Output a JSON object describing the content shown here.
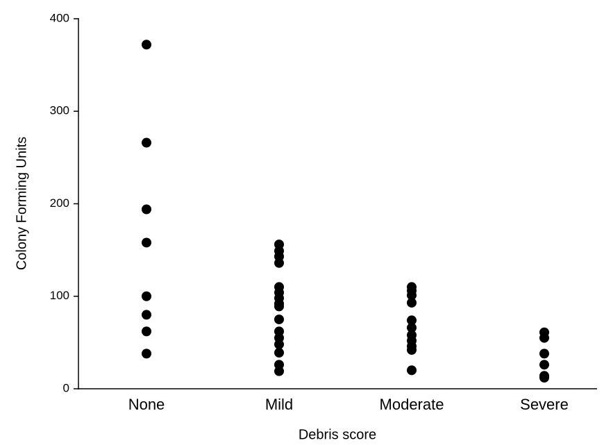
{
  "chart_data": {
    "type": "strip",
    "x_label": "Debris score",
    "y_label": "Colony Forming Units",
    "categories": [
      "None",
      "Mild",
      "Moderate",
      "Severe"
    ],
    "values": [
      [
        372,
        266,
        194,
        158,
        100,
        80,
        62,
        38
      ],
      [
        156,
        149,
        143,
        136,
        110,
        104,
        98,
        92,
        89,
        75,
        62,
        55,
        48,
        39,
        26,
        19
      ],
      [
        110,
        106,
        101,
        93,
        74,
        66,
        58,
        52,
        46,
        42,
        20
      ],
      [
        61,
        55,
        38,
        26,
        14,
        12
      ]
    ],
    "color": "#000000",
    "ylim": [
      0,
      400
    ],
    "yticks": [
      0,
      100,
      200,
      300,
      400
    ]
  }
}
